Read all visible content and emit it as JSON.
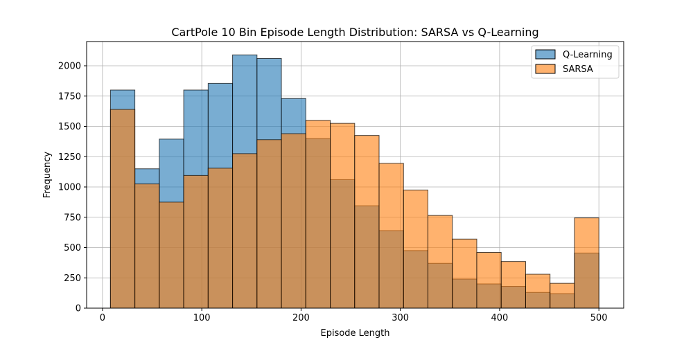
{
  "chart_data": {
    "type": "bar",
    "title": "CartPole 10 Bin Episode Length Distribution: SARSA vs Q-Learning",
    "xlabel": "Episode Length",
    "ylabel": "Frequency",
    "xlim": [
      -16,
      525
    ],
    "ylim": [
      0,
      2200
    ],
    "xticks": [
      0,
      100,
      200,
      300,
      400,
      500
    ],
    "yticks": [
      0,
      250,
      500,
      750,
      1000,
      1250,
      1500,
      1750,
      2000
    ],
    "grid": true,
    "legend_position": "top-right",
    "bin_edges": [
      8,
      32.6,
      57.2,
      81.8,
      106.4,
      131,
      155.6,
      180.2,
      204.8,
      229.4,
      254,
      278.6,
      303.2,
      327.8,
      352.4,
      377,
      401.6,
      426.2,
      450.8,
      475.4,
      500
    ],
    "series": [
      {
        "name": "Q-Learning",
        "color": "#1f77b4",
        "values": [
          1800,
          1150,
          1395,
          1800,
          1855,
          2090,
          2060,
          1730,
          1400,
          1060,
          845,
          640,
          475,
          370,
          240,
          200,
          180,
          130,
          120,
          455
        ]
      },
      {
        "name": "SARSA",
        "color": "#ff7f0e",
        "values": [
          1640,
          1025,
          875,
          1095,
          1155,
          1275,
          1390,
          1440,
          1550,
          1525,
          1425,
          1195,
          975,
          765,
          570,
          460,
          385,
          280,
          205,
          745
        ]
      }
    ]
  }
}
